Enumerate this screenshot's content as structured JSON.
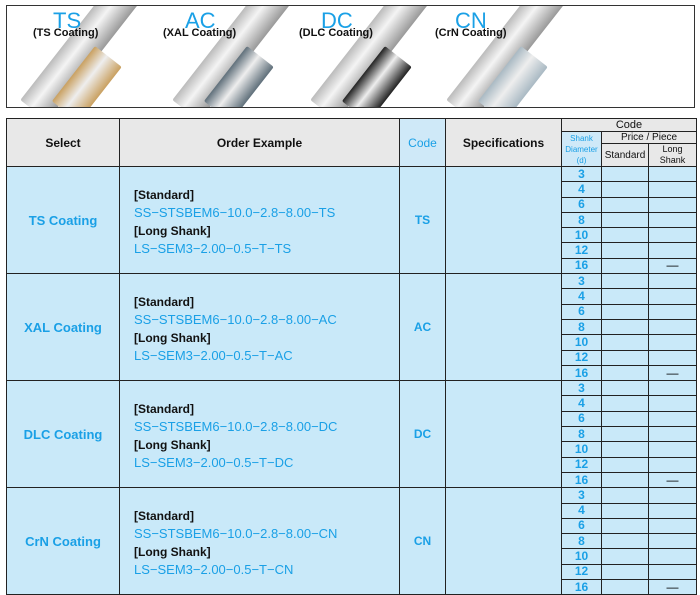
{
  "banner": [
    {
      "code": "TS",
      "label": "(TS Coating)",
      "color": "#c9a060"
    },
    {
      "code": "AC",
      "label": "(XAL Coating)",
      "color": "#5f6f7a"
    },
    {
      "code": "DC",
      "label": "(DLC Coating)",
      "color": "#222222"
    },
    {
      "code": "CN",
      "label": "(CrN Coating)",
      "color": "#a9b9c3"
    }
  ],
  "header": {
    "select": "Select",
    "order": "Order Example",
    "code": "Code",
    "specs": "Specifications",
    "code_group": "Code",
    "shank1": "Shank",
    "shank2": "Diameter (d)",
    "price": "Price / Piece",
    "standard": "Standard",
    "long": "Long Shank"
  },
  "groups": [
    {
      "select": "TS Coating",
      "std_label": "[Standard]",
      "std": "SS−STSBEM6−10.0−2.8−8.00−TS",
      "long_label": "[Long Shank]",
      "long": "LS−SEM3−2.00−0.5−T−TS",
      "code": "TS"
    },
    {
      "select": "XAL Coating",
      "std_label": "[Standard]",
      "std": "SS−STSBEM6−10.0−2.8−8.00−AC",
      "long_label": "[Long Shank]",
      "long": "LS−SEM3−2.00−0.5−T−AC",
      "code": "AC"
    },
    {
      "select": "DLC Coating",
      "std_label": "[Standard]",
      "std": "SS−STSBEM6−10.0−2.8−8.00−DC",
      "long_label": "[Long Shank]",
      "long": "LS−SEM3−2.00−0.5−T−DC",
      "code": "DC"
    },
    {
      "select": "CrN Coating",
      "std_label": "[Standard]",
      "std": "SS−STSBEM6−10.0−2.8−8.00−CN",
      "long_label": "[Long Shank]",
      "long": "LS−SEM3−2.00−0.5−T−CN",
      "code": "CN"
    }
  ],
  "diameters": [
    "3",
    "4",
    "6",
    "8",
    "10",
    "12",
    "16"
  ],
  "long_na_row": "16",
  "na_mark": "—"
}
